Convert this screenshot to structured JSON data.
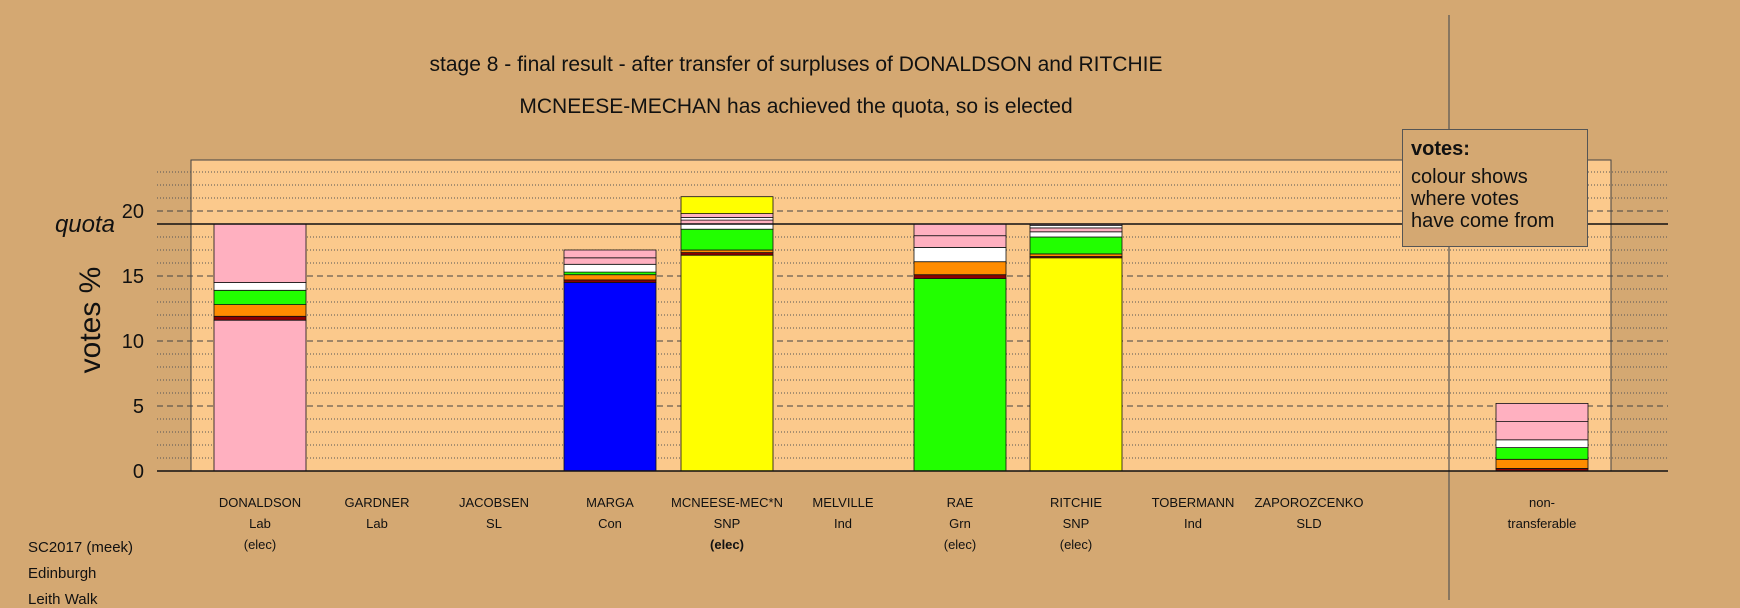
{
  "titles": {
    "line1": "stage 8 - final result - after transfer of surpluses of DONALDSON and RITCHIE",
    "line2": "MCNEESE-MECHAN has achieved the quota, so is elected"
  },
  "legend": {
    "title": "votes:",
    "lines": [
      "colour shows",
      "where votes",
      "have come from"
    ]
  },
  "footer": [
    "SC2017 (meek)",
    "Edinburgh",
    "Leith Walk"
  ],
  "colors": {
    "background": "#d4a872",
    "plot_area": "#fbc98c",
    "Lab": "#ffb0c0",
    "Con": "#0000ff",
    "SNP": "#ffff00",
    "Grn": "#22ff00",
    "SLD": "#ff8c00",
    "Ind": "#ffffff",
    "SL": "#8b0000"
  },
  "chart_data": {
    "type": "bar",
    "stacked": true,
    "ylabel": "votes %",
    "ylim": [
      0,
      23.5
    ],
    "yticks": [
      0,
      5,
      10,
      15,
      20
    ],
    "quota": 19,
    "quota_label": "quota",
    "grid": "dashed every 5, dotted every 1",
    "candidates": [
      {
        "name": "DONALDSON",
        "party": "Lab",
        "status": "(elec)",
        "segments": [
          {
            "party": "Lab",
            "value": 11.6
          },
          {
            "party": "SL",
            "value": 0.3
          },
          {
            "party": "SLD",
            "value": 0.9
          },
          {
            "party": "Grn",
            "value": 1.1
          },
          {
            "party": "Ind",
            "value": 0.6
          },
          {
            "party": "Lab",
            "value": 4.5
          }
        ]
      },
      {
        "name": "GARDNER",
        "party": "Lab",
        "status": "",
        "segments": []
      },
      {
        "name": "JACOBSEN",
        "party": "SL",
        "status": "",
        "segments": []
      },
      {
        "name": "MARGA",
        "party": "Con",
        "status": "",
        "segments": [
          {
            "party": "Con",
            "value": 14.5
          },
          {
            "party": "SL",
            "value": 0.2
          },
          {
            "party": "SLD",
            "value": 0.4
          },
          {
            "party": "Grn",
            "value": 0.2
          },
          {
            "party": "Ind",
            "value": 0.6
          },
          {
            "party": "Lab",
            "value": 0.5
          },
          {
            "party": "Lab",
            "value": 0.6
          }
        ]
      },
      {
        "name": "MCNEESE-MEC*N",
        "party": "SNP",
        "status": "(elec)",
        "segments": [
          {
            "party": "SNP",
            "value": 16.6
          },
          {
            "party": "SL",
            "value": 0.2
          },
          {
            "party": "SLD",
            "value": 0.2
          },
          {
            "party": "Grn",
            "value": 1.6
          },
          {
            "party": "Ind",
            "value": 0.4
          },
          {
            "party": "Lab",
            "value": 0.3
          },
          {
            "party": "Ind",
            "value": 0.2
          },
          {
            "party": "Lab",
            "value": 0.3
          },
          {
            "party": "SNP",
            "value": 1.3
          }
        ]
      },
      {
        "name": "MELVILLE",
        "party": "Ind",
        "status": "",
        "segments": []
      },
      {
        "name": "RAE",
        "party": "Grn",
        "status": "(elec)",
        "segments": [
          {
            "party": "Grn",
            "value": 14.8
          },
          {
            "party": "SL",
            "value": 0.3
          },
          {
            "party": "SLD",
            "value": 1.0
          },
          {
            "party": "Ind",
            "value": 1.1
          },
          {
            "party": "Lab",
            "value": 0.9
          },
          {
            "party": "Lab",
            "value": 0.9
          }
        ]
      },
      {
        "name": "RITCHIE",
        "party": "SNP",
        "status": "(elec)",
        "segments": [
          {
            "party": "SNP",
            "value": 16.4
          },
          {
            "party": "SL",
            "value": 0.1
          },
          {
            "party": "SLD",
            "value": 0.2
          },
          {
            "party": "Grn",
            "value": 1.3
          },
          {
            "party": "Ind",
            "value": 0.4
          },
          {
            "party": "Lab",
            "value": 0.3
          },
          {
            "party": "Ind",
            "value": 0.2
          },
          {
            "party": "Lab",
            "value": 0.1
          }
        ]
      },
      {
        "name": "TOBERMANN",
        "party": "Ind",
        "status": "",
        "segments": []
      },
      {
        "name": "ZAPOROZCENKO",
        "party": "SLD",
        "status": "",
        "segments": []
      }
    ],
    "nontransferable": {
      "label_lines": [
        "non-",
        "transferable"
      ],
      "segments": [
        {
          "party": "SL",
          "value": 0.2
        },
        {
          "party": "SLD",
          "value": 0.7
        },
        {
          "party": "Grn",
          "value": 0.9
        },
        {
          "party": "Ind",
          "value": 0.6
        },
        {
          "party": "Lab",
          "value": 1.4
        },
        {
          "party": "Lab",
          "value": 1.4
        }
      ]
    }
  }
}
